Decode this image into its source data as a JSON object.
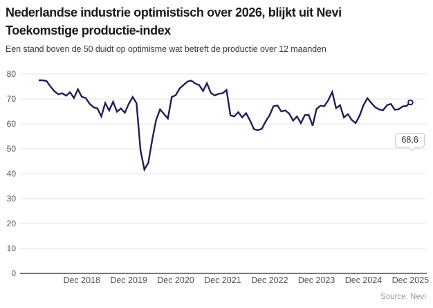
{
  "header": {
    "title_lines": [
      "Nederlandse industrie optimistisch over 2026, blijkt uit Nevi",
      "Toekomstige productie-index"
    ],
    "subtitle": "Een stand boven de 50 duidt op optimisme wat betreft de productie over 12 maanden"
  },
  "footer": {
    "source": "Source: Nevi"
  },
  "colors": {
    "line": "#221c55",
    "grid": "#e3e3e3",
    "zero_axis": "#4d4d4d",
    "tick_text": "#4f4f4f",
    "title_text": "#1a1a1a"
  },
  "chart_data": {
    "type": "line",
    "title": "Nederlandse industrie optimistisch over 2026, blijkt uit Nevi Toekomstige productie-index",
    "subtitle": "Een stand boven de 50 duidt op optimisme wat betreft de productie over 12 maanden",
    "source": "Source: Nevi",
    "legend": "none",
    "grid": "horizontal gridlines only",
    "ylim": [
      0,
      82
    ],
    "y_ticks": [
      0,
      10,
      20,
      30,
      40,
      50,
      60,
      70,
      80
    ],
    "x_interval": "monthly",
    "x_start": "jan 2018",
    "x_end": "dec 2025",
    "x_tick_labels": [
      "Dec 2018",
      "Dec 2019",
      "Dec 2020",
      "Dec 2021",
      "Dec 2022",
      "Dec 2023",
      "Dec 2024",
      "Dec 2025"
    ],
    "end_label": "68,6",
    "end_value": 68.6,
    "line_color": "#221c55",
    "series": [
      {
        "name": "Nevi Toekomstige productie-index",
        "values": [
          77.5,
          77.5,
          77.2,
          75.0,
          73.1,
          71.9,
          72.3,
          71.3,
          72.7,
          70.4,
          73.9,
          70.9,
          70.4,
          68.1,
          66.7,
          66.2,
          63.0,
          68.4,
          65.4,
          68.9,
          64.9,
          66.2,
          64.5,
          68.0,
          70.8,
          68.3,
          49.5,
          41.7,
          44.4,
          53.5,
          61.6,
          65.8,
          64.0,
          62.2,
          70.8,
          71.5,
          74.2,
          75.6,
          77.0,
          77.4,
          76.2,
          75.6,
          73.2,
          76.3,
          72.4,
          71.4,
          72.1,
          72.3,
          73.6,
          63.4,
          63.0,
          64.7,
          62.6,
          64.3,
          61.4,
          57.9,
          57.5,
          58.0,
          61.0,
          63.5,
          67.1,
          67.4,
          65.0,
          65.4,
          64.2,
          61.3,
          63.0,
          60.3,
          63.5,
          63.6,
          59.3,
          66.0,
          67.3,
          67.1,
          69.5,
          72.8,
          66.3,
          67.5,
          62.6,
          63.9,
          61.6,
          60.3,
          63.3,
          67.5,
          70.3,
          68.4,
          66.7,
          65.8,
          65.5,
          67.5,
          68.0,
          65.7,
          65.9,
          67.0,
          67.2,
          68.6
        ]
      }
    ]
  }
}
